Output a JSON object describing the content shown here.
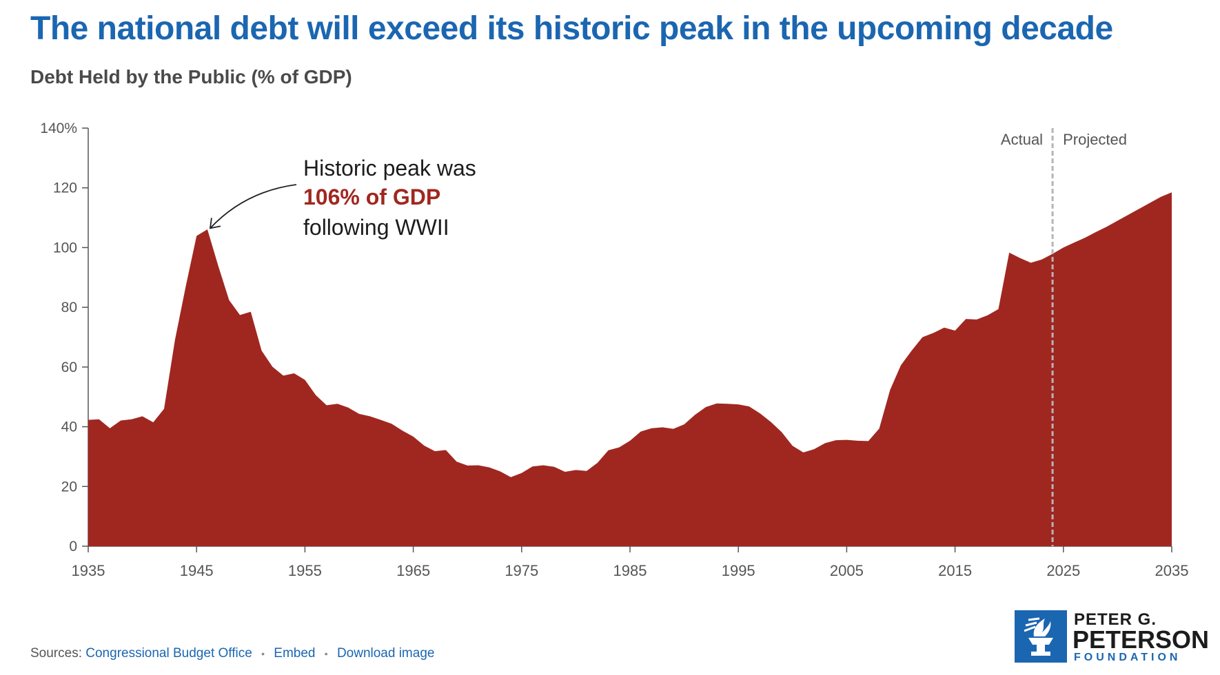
{
  "header": {
    "title": "The national debt will exceed its historic peak in the upcoming decade",
    "subtitle": "Debt Held by the Public (% of GDP)"
  },
  "annotation": {
    "line1": "Historic peak was",
    "line2": "106% of GDP",
    "line3": "following WWII"
  },
  "divider_labels": {
    "left": "Actual",
    "right": "Projected"
  },
  "footer": {
    "sources_label": "Sources:",
    "source_link": "Congressional Budget Office",
    "embed_link": "Embed",
    "download_link": "Download image",
    "separator": "•"
  },
  "logo": {
    "line1": "PETER G.",
    "line2": "PETERSON",
    "line3": "FOUNDATION"
  },
  "colors": {
    "area": "#a02720",
    "title": "#1b66b1",
    "highlight": "#a02720",
    "divider": "#b5b5b5"
  },
  "chart_data": {
    "type": "area",
    "title": "Debt Held by the Public (% of GDP)",
    "xlabel": "",
    "ylabel": "",
    "xlim": [
      1935,
      2035
    ],
    "ylim": [
      0,
      140
    ],
    "x_ticks": [
      1935,
      1945,
      1955,
      1965,
      1975,
      1985,
      1995,
      2005,
      2015,
      2025,
      2035
    ],
    "y_ticks": [
      0,
      20,
      40,
      60,
      80,
      100,
      120,
      140
    ],
    "y_tick_labels": [
      "0",
      "20",
      "40",
      "60",
      "80",
      "100",
      "120",
      "140%"
    ],
    "actual_projected_divider_year": 2024,
    "annotation_point": {
      "x": 1946,
      "y": 106
    },
    "series": [
      {
        "name": "Debt Held by the Public (% of GDP)",
        "x": [
          1935,
          1936,
          1937,
          1938,
          1939,
          1940,
          1941,
          1942,
          1943,
          1944,
          1945,
          1946,
          1947,
          1948,
          1949,
          1950,
          1951,
          1952,
          1953,
          1954,
          1955,
          1956,
          1957,
          1958,
          1959,
          1960,
          1961,
          1962,
          1963,
          1964,
          1965,
          1966,
          1967,
          1968,
          1969,
          1970,
          1971,
          1972,
          1973,
          1974,
          1975,
          1976,
          1977,
          1978,
          1979,
          1980,
          1981,
          1982,
          1983,
          1984,
          1985,
          1986,
          1987,
          1988,
          1989,
          1990,
          1991,
          1992,
          1993,
          1994,
          1995,
          1996,
          1997,
          1998,
          1999,
          2000,
          2001,
          2002,
          2003,
          2004,
          2005,
          2006,
          2007,
          2008,
          2009,
          2010,
          2011,
          2012,
          2013,
          2014,
          2015,
          2016,
          2017,
          2018,
          2019,
          2020,
          2021,
          2022,
          2023,
          2024,
          2025,
          2026,
          2027,
          2028,
          2029,
          2030,
          2031,
          2032,
          2033,
          2034,
          2035
        ],
        "values": [
          42.3,
          42.5,
          39.5,
          42.1,
          42.5,
          43.5,
          41.5,
          46,
          69,
          87,
          103.9,
          106.1,
          93.9,
          82.4,
          77.4,
          78.5,
          65.5,
          60.1,
          57.1,
          57.9,
          55.7,
          50.6,
          47.2,
          47.7,
          46.4,
          44.3,
          43.5,
          42.3,
          41,
          38.7,
          36.7,
          33.7,
          31.8,
          32.2,
          28.3,
          27,
          27.1,
          26.4,
          25.1,
          23.1,
          24.5,
          26.7,
          27.1,
          26.6,
          24.9,
          25.5,
          25.2,
          27.9,
          32.1,
          33.1,
          35.3,
          38.4,
          39.5,
          39.8,
          39.3,
          40.8,
          44,
          46.6,
          47.8,
          47.7,
          47.5,
          46.8,
          44.5,
          41.6,
          38.2,
          33.6,
          31.4,
          32.5,
          34.5,
          35.5,
          35.6,
          35.3,
          35.2,
          39.4,
          52.3,
          60.6,
          65.5,
          70,
          71.4,
          73.2,
          72.2,
          76.1,
          75.9,
          77.3,
          79.4,
          98.3,
          96.5,
          94.9,
          96,
          97.9,
          100,
          101.7,
          103.3,
          105.2,
          107,
          109,
          111,
          113,
          115,
          117,
          118.5
        ]
      }
    ]
  }
}
